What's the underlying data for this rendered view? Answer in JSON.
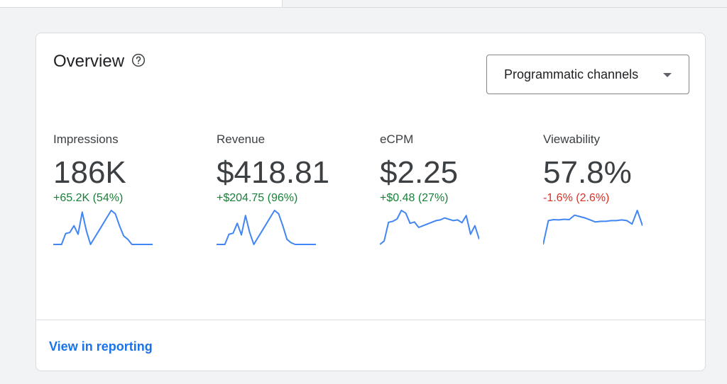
{
  "card": {
    "title": "Overview",
    "help_icon": "help-circle-icon",
    "dropdown": {
      "selected": "Programmatic channels",
      "icon": "caret-down-icon"
    },
    "footer_link": "View in reporting"
  },
  "colors": {
    "positive": "#188038",
    "negative": "#d93025",
    "sparkline": "#4285f4",
    "link": "#1a73e8"
  },
  "metrics": [
    {
      "label": "Impressions",
      "value": "186K",
      "change": "+65.2K (54%)",
      "trend": "positive",
      "sparkline": [
        0,
        0,
        0,
        0.32,
        0.35,
        0.55,
        0.3,
        0.95,
        0.4,
        0,
        0.2,
        0.4,
        0.6,
        0.8,
        1.0,
        0.9,
        0.55,
        0.25,
        0.15,
        0,
        0,
        0,
        0,
        0,
        0
      ]
    },
    {
      "label": "Revenue",
      "value": "$418.81",
      "change": "+$204.75 (96%)",
      "trend": "positive",
      "sparkline": [
        0,
        0,
        0,
        0.3,
        0.33,
        0.62,
        0.28,
        0.85,
        0.35,
        0,
        0.2,
        0.4,
        0.6,
        0.8,
        1.0,
        0.9,
        0.55,
        0.15,
        0.05,
        0,
        0,
        0,
        0,
        0,
        0
      ]
    },
    {
      "label": "eCPM",
      "value": "$2.25",
      "change": "+$0.48 (27%)",
      "trend": "positive",
      "sparkline": [
        0,
        0.1,
        0.65,
        0.68,
        0.75,
        1.0,
        0.92,
        0.62,
        0.66,
        0.5,
        0.55,
        0.6,
        0.65,
        0.7,
        0.72,
        0.78,
        0.74,
        0.7,
        0.72,
        0.64,
        0.85,
        0.3,
        0.55,
        0.15
      ]
    },
    {
      "label": "Viewability",
      "value": "57.8%",
      "change": "-1.6% (2.6%)",
      "trend": "negative",
      "sparkline": [
        0,
        0.7,
        0.73,
        0.72,
        0.74,
        0.73,
        0.86,
        0.82,
        0.78,
        0.72,
        0.66,
        0.68,
        0.68,
        0.7,
        0.7,
        0.72,
        0.7,
        0.6,
        1.0,
        0.55
      ]
    }
  ]
}
